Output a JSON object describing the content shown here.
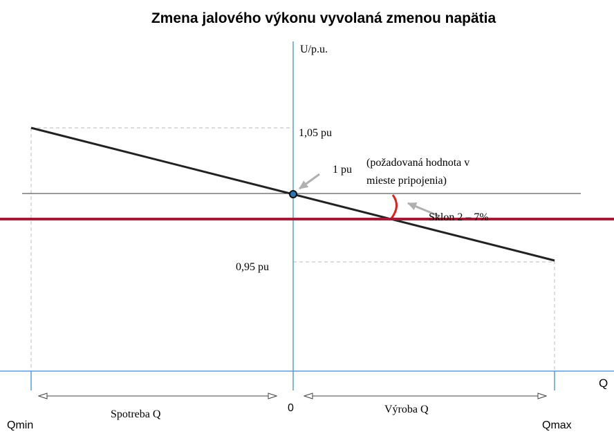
{
  "title": "Zmena jalového výkonu vyvolaná zmenou napätia",
  "y_axis_label": "U/p.u.",
  "x_axis_label": "Q",
  "origin_label": "0",
  "level_high": "1,05 pu",
  "level_nominal": "1 pu",
  "level_low": "0,95 pu",
  "setpoint_note": [
    "(požadovaná hodnota v",
    "mieste pripojenia)"
  ],
  "slope_label": "Sklon 2 – 7%",
  "consumption_label": "Spotreba Q",
  "production_label": "Výroba Q",
  "q_min_label": "Qmin",
  "q_max_label": "Qmax"
}
